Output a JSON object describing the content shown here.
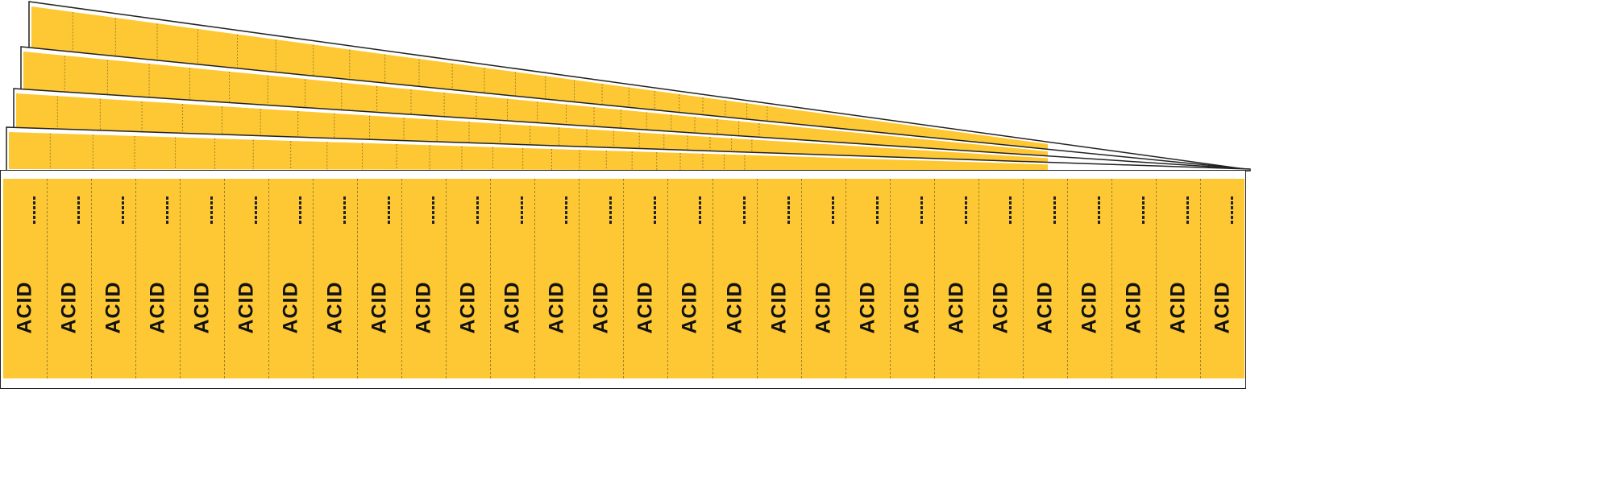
{
  "product": {
    "label_text": "ACID",
    "labels_per_sheet": 28,
    "back_sheets": 4,
    "colors": {
      "label_background": "#fdc833",
      "text": "#111111",
      "sheet_edge": "#222222"
    }
  }
}
